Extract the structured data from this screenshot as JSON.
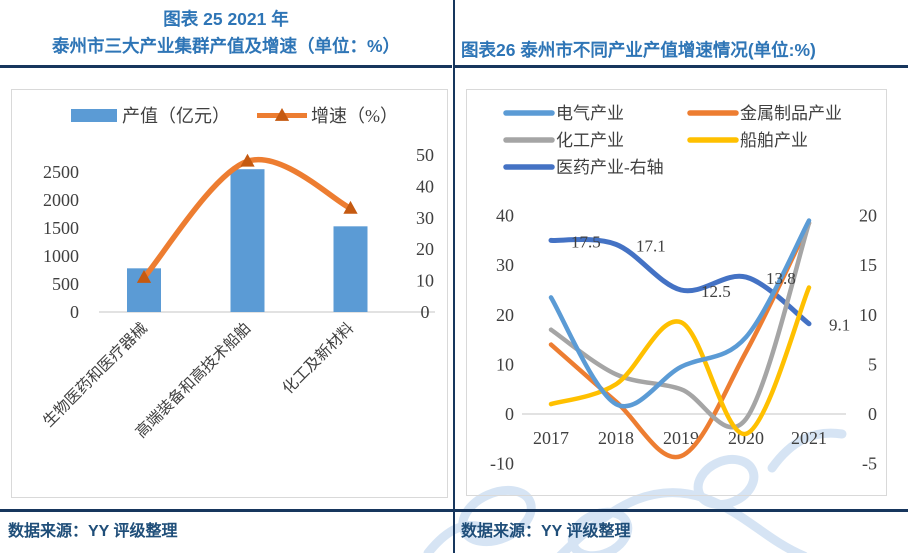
{
  "colors": {
    "title_blue": "#2E75B6",
    "rule_navy": "#17365D",
    "source_navy": "#1F4E79",
    "axis_text": "#404040",
    "plot_border": "#D9D9D9",
    "watermark_blue": "#AECBEA"
  },
  "left_panel": {
    "title_line1": "图表 25 2021 年",
    "title_line2": "泰州市三大产业集群产值及增速（单位：%）",
    "source": "数据来源：YY 评级整理"
  },
  "right_panel": {
    "title": "图表26 泰州市不同产业产值增速情况(单位:%)",
    "source": "数据来源：YY 评级整理"
  },
  "chart_data": [
    {
      "type": "bar",
      "subtype": "bar+line-combo",
      "title": "图表 25 2021 年 泰州市三大产业集群产值及增速（单位：%）",
      "categories": [
        "生物医药和医疗器械",
        "高端装备和高技术船舶",
        "化工及新材料"
      ],
      "series": [
        {
          "name": "产值（亿元）",
          "type": "bar",
          "axis": "left",
          "color": "#5B9BD5",
          "values": [
            780,
            2550,
            1530
          ]
        },
        {
          "name": "增速（%）",
          "type": "line",
          "axis": "right",
          "color": "#ED7D31",
          "marker": "triangle",
          "marker_color": "#C55A11",
          "values": [
            11,
            48,
            33
          ]
        }
      ],
      "left_axis": {
        "label": "产值（亿元）",
        "min": 0,
        "max": 2500,
        "ticks": [
          0,
          500,
          1000,
          1500,
          2000,
          2500
        ]
      },
      "right_axis": {
        "label": "增速（%）",
        "min": 0,
        "max": 50,
        "ticks": [
          0,
          10,
          20,
          30,
          40,
          50
        ]
      },
      "legend_position": "top",
      "grid": false
    },
    {
      "type": "line",
      "subtype": "smooth-lines",
      "title": "图表26 泰州市不同产业产值增速情况(单位:%)",
      "x": [
        "2017",
        "2018",
        "2019",
        "2020",
        "2021"
      ],
      "series": [
        {
          "name": "电气产业",
          "axis": "left",
          "color": "#5B9BD5",
          "values": [
            23.5,
            2,
            9.5,
            15.5,
            39
          ]
        },
        {
          "name": "金属制品产业",
          "axis": "left",
          "color": "#ED7D31",
          "values": [
            14,
            2.5,
            -8.5,
            12.5,
            38.5
          ]
        },
        {
          "name": "化工产业",
          "axis": "left",
          "color": "#A5A5A5",
          "values": [
            17,
            8,
            5,
            -1,
            38.5
          ]
        },
        {
          "name": "船舶产业",
          "axis": "left",
          "color": "#FFC000",
          "values": [
            2,
            6,
            18.5,
            -4,
            25.5
          ]
        },
        {
          "name": "医药产业-右轴",
          "axis": "right",
          "color": "#4472C4",
          "values": [
            17.5,
            17.1,
            12.5,
            13.8,
            9.1
          ],
          "labels": [
            "17.5",
            "17.1",
            "12.5",
            "13.8",
            "9.1"
          ]
        }
      ],
      "left_axis": {
        "min": -10,
        "max": 40,
        "ticks": [
          -10,
          0,
          10,
          20,
          30,
          40
        ]
      },
      "right_axis": {
        "min": -5,
        "max": 20,
        "ticks": [
          -5,
          0,
          5,
          10,
          15,
          20
        ]
      },
      "legend_position": "top",
      "grid": false
    }
  ]
}
